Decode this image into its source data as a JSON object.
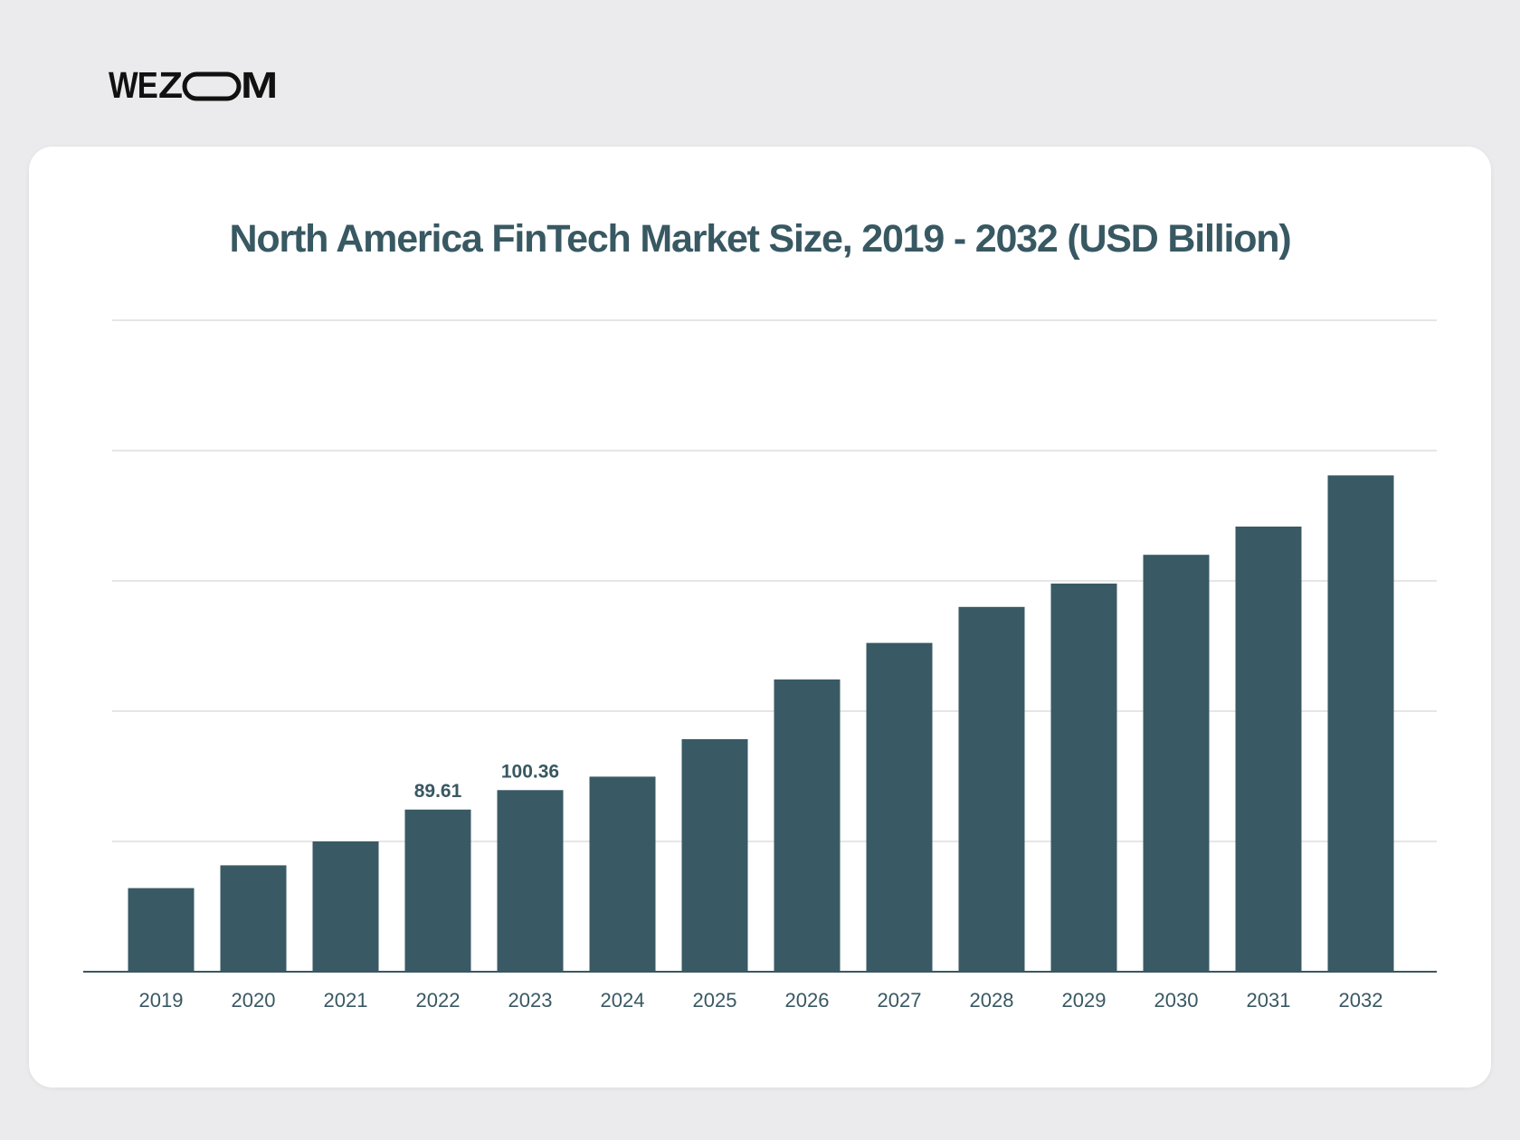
{
  "brand": {
    "logo_text": "WEZOOM",
    "logo_color": "#111111"
  },
  "colors": {
    "background": "#ebebed",
    "card": "#ffffff",
    "bar": "#395a65",
    "gridline": "#dedede",
    "axis": "#385862"
  },
  "chart_data": {
    "type": "bar",
    "title": "North America FinTech Market Size, 2019 - 2032 (USD Billion)",
    "xlabel": "",
    "ylabel": "",
    "categories": [
      "2019",
      "2020",
      "2021",
      "2022",
      "2023",
      "2024",
      "2025",
      "2026",
      "2027",
      "2028",
      "2029",
      "2030",
      "2031",
      "2032"
    ],
    "values": [
      46.2,
      58.8,
      72.0,
      89.61,
      100.36,
      107.8,
      128.5,
      161.5,
      181.7,
      201.6,
      214.5,
      230.4,
      246.0,
      274.3
    ],
    "data_labels": [
      "",
      "",
      "",
      "89.61",
      "100.36",
      "",
      "",
      "",
      "",
      "",
      "",
      "",
      "",
      ""
    ],
    "ylim": [
      0,
      360
    ],
    "gridlines": [
      0,
      72,
      144,
      216,
      288,
      360
    ],
    "y_tick_labels_shown": false,
    "grid": true,
    "legend": "none"
  }
}
